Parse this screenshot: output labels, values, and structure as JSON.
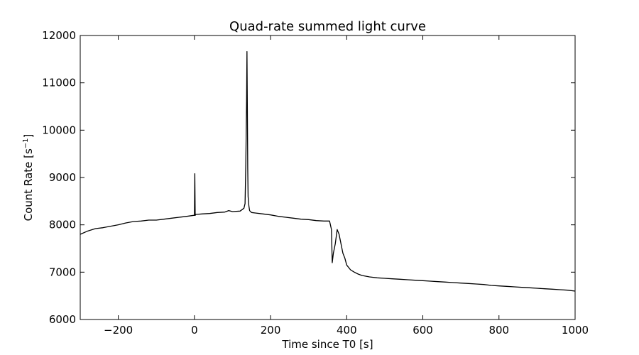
{
  "chart_data": {
    "type": "line",
    "title": "Quad-rate summed light curve",
    "xlabel": "Time since T0 [s]",
    "ylabel": "Count Rate [s",
    "ylabel_sup": "−1",
    "ylabel_end": "]",
    "xlim": [
      -300,
      1000
    ],
    "ylim": [
      6000,
      12000
    ],
    "grid": false,
    "legend": "none",
    "line_color": "#000000",
    "x_ticks": [
      -200,
      0,
      200,
      400,
      600,
      800,
      1000
    ],
    "x_tick_labels": [
      "−200",
      "0",
      "200",
      "400",
      "600",
      "800",
      "1000"
    ],
    "y_ticks": [
      6000,
      7000,
      8000,
      9000,
      10000,
      11000,
      12000
    ],
    "y_tick_labels": [
      "6000",
      "7000",
      "8000",
      "9000",
      "10000",
      "11000",
      "12000"
    ],
    "series": [
      {
        "x": [
          -300,
          -280,
          -260,
          -240,
          -220,
          -200,
          -180,
          -160,
          -140,
          -120,
          -100,
          -80,
          -60,
          -40,
          -20,
          -2,
          0,
          1,
          2,
          4,
          20,
          40,
          60,
          80,
          90,
          100,
          120,
          130,
          133,
          135,
          137,
          138,
          139,
          140,
          141,
          143,
          145,
          150,
          160,
          180,
          200,
          220,
          240,
          260,
          280,
          300,
          320,
          340,
          355,
          360,
          362,
          365,
          370,
          375,
          380,
          385,
          390,
          395,
          400,
          410,
          420,
          430,
          440,
          460,
          480,
          500,
          520,
          540,
          560,
          580,
          600,
          620,
          640,
          660,
          680,
          700,
          720,
          740,
          760,
          780,
          800,
          820,
          840,
          860,
          880,
          900,
          920,
          940,
          960,
          980,
          1000
        ],
        "y": [
          7800,
          7870,
          7920,
          7940,
          7970,
          8000,
          8040,
          8070,
          8080,
          8100,
          8100,
          8120,
          8140,
          8160,
          8180,
          8200,
          8200,
          9080,
          8200,
          8220,
          8230,
          8240,
          8260,
          8270,
          8300,
          8280,
          8290,
          8350,
          8450,
          9300,
          10600,
          11660,
          10500,
          9200,
          8600,
          8400,
          8300,
          8260,
          8250,
          8230,
          8210,
          8180,
          8160,
          8140,
          8120,
          8110,
          8090,
          8080,
          8080,
          7900,
          7200,
          7400,
          7600,
          7900,
          7800,
          7600,
          7400,
          7300,
          7150,
          7050,
          7000,
          6960,
          6930,
          6900,
          6880,
          6870,
          6860,
          6850,
          6840,
          6830,
          6820,
          6810,
          6800,
          6790,
          6780,
          6770,
          6760,
          6750,
          6740,
          6720,
          6710,
          6700,
          6690,
          6680,
          6670,
          6660,
          6650,
          6640,
          6630,
          6620,
          6600
        ]
      }
    ]
  }
}
